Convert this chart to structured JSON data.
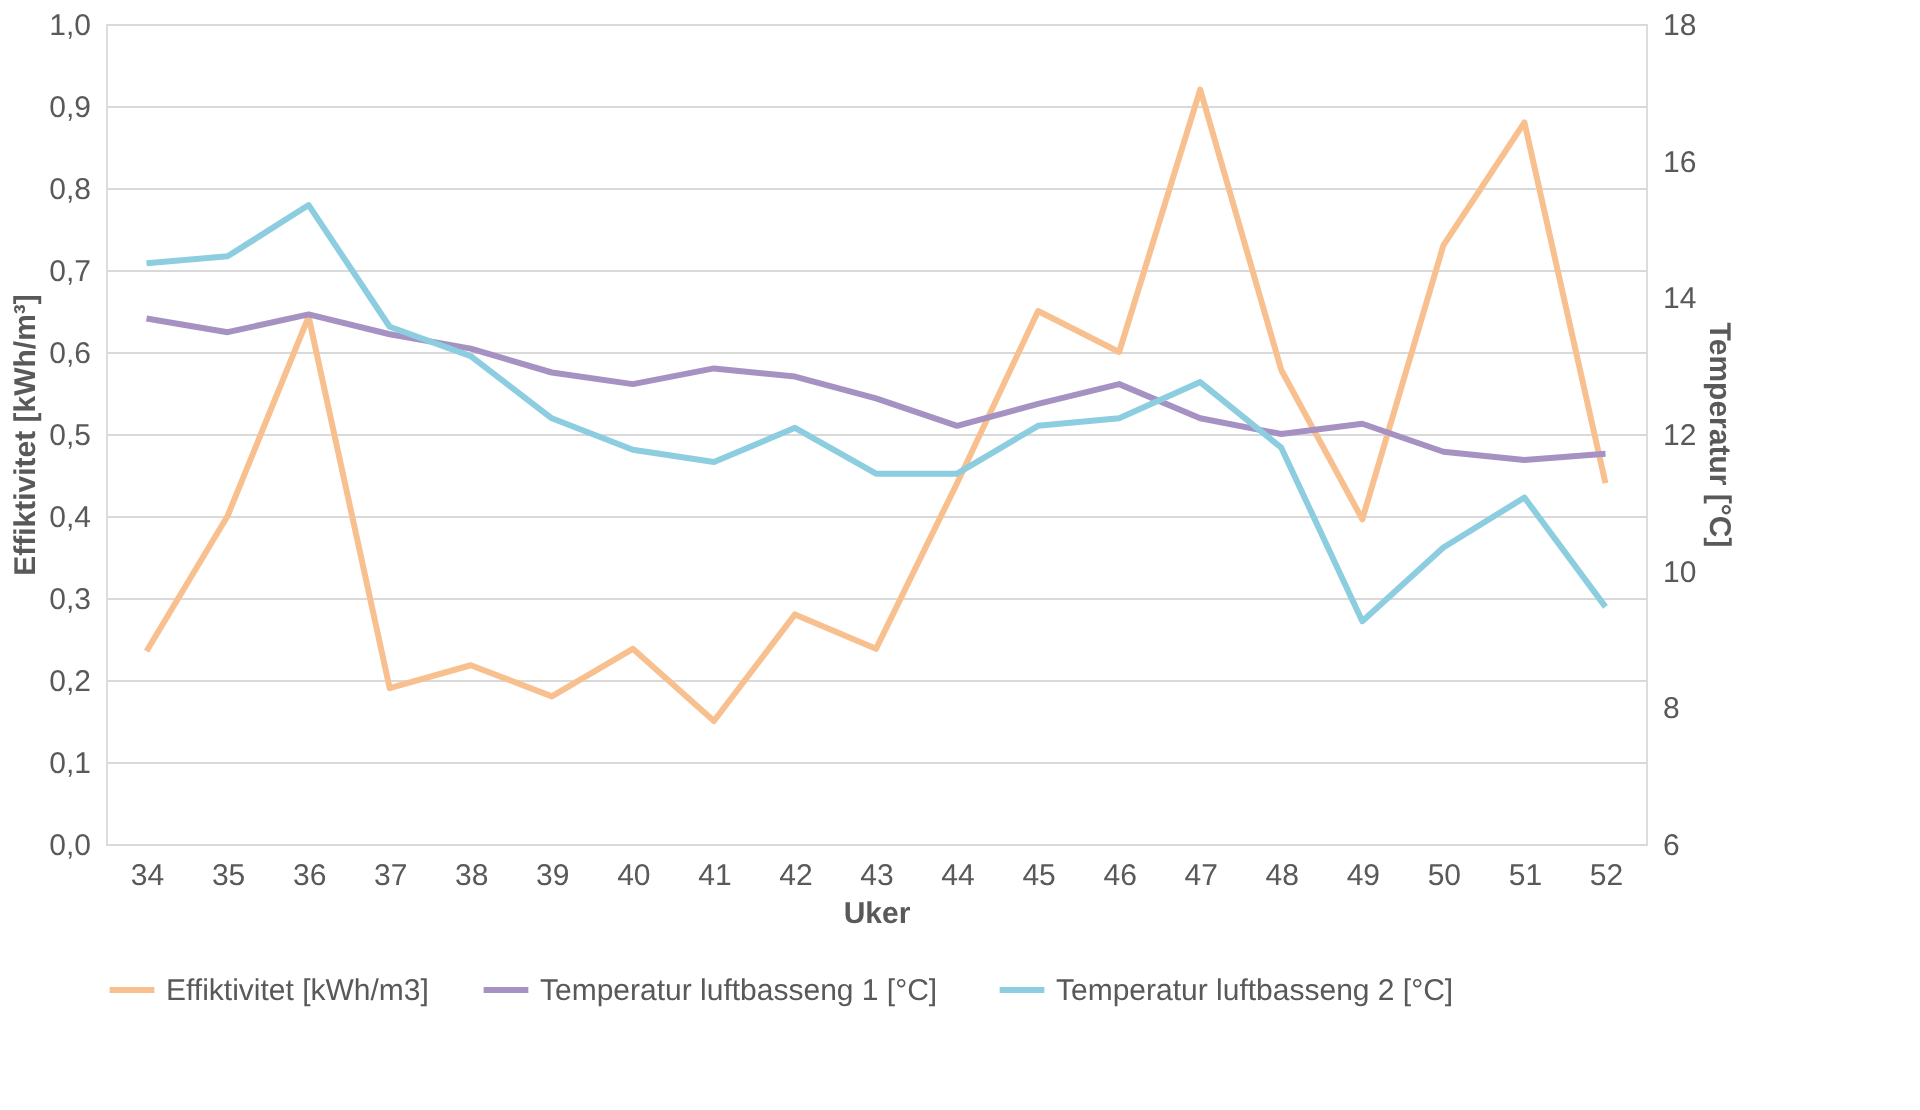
{
  "chart_data": {
    "type": "line",
    "xlabel": "Uker",
    "ylabel": "Effiktivitet [kWh/m³]",
    "y2label": "Temperatur [°C]",
    "categories": [
      "34",
      "35",
      "36",
      "37",
      "38",
      "39",
      "40",
      "41",
      "42",
      "43",
      "44",
      "45",
      "46",
      "47",
      "48",
      "49",
      "50",
      "51",
      "52"
    ],
    "series": [
      {
        "name": "Effiktivitet [kWh/m3]",
        "color": "#f9c08f",
        "values": [
          0.235,
          0.4,
          0.643,
          0.19,
          0.218,
          0.18,
          0.238,
          0.15,
          0.28,
          0.238,
          0.44,
          0.65,
          0.6,
          0.92,
          0.578,
          0.396,
          0.73,
          0.88,
          0.44
        ]
      },
      {
        "name": "Temperatur luftbasseng 1  [°C]",
        "color": "#a592c3",
        "axis": "y2",
        "values": [
          13.69,
          13.49,
          13.75,
          13.46,
          13.25,
          12.9,
          12.73,
          12.96,
          12.84,
          12.52,
          12.12,
          12.44,
          12.73,
          12.23,
          12.0,
          12.15,
          11.74,
          11.62,
          11.71
        ]
      },
      {
        "name": "Temperatur luftbasseng 2  [°C]",
        "color": "#8ccde0",
        "axis": "y2",
        "values": [
          14.5,
          14.6,
          15.35,
          13.57,
          13.14,
          12.23,
          11.77,
          11.59,
          12.09,
          11.42,
          11.42,
          12.12,
          12.23,
          12.76,
          11.8,
          9.26,
          10.34,
          11.07,
          9.47
        ]
      }
    ],
    "ylim": [
      0,
      1
    ],
    "yticks": [
      {
        "value": 0,
        "label": "0,0"
      },
      {
        "value": 0.1,
        "label": "0,1"
      },
      {
        "value": 0.2,
        "label": "0,2"
      },
      {
        "value": 0.3,
        "label": "0,3"
      },
      {
        "value": 0.4,
        "label": "0,4"
      },
      {
        "value": 0.5,
        "label": "0,5"
      },
      {
        "value": 0.6,
        "label": "0,6"
      },
      {
        "value": 0.7,
        "label": "0,7"
      },
      {
        "value": 0.8,
        "label": "0,8"
      },
      {
        "value": 0.9,
        "label": "0,9"
      },
      {
        "value": 1,
        "label": "1,0"
      }
    ],
    "y2lim": [
      6,
      18
    ],
    "y2ticks": [
      6,
      8,
      10,
      12,
      14,
      16,
      18
    ],
    "grid": "y",
    "legend": "bottom",
    "marker": "none",
    "line_style": "solid"
  }
}
